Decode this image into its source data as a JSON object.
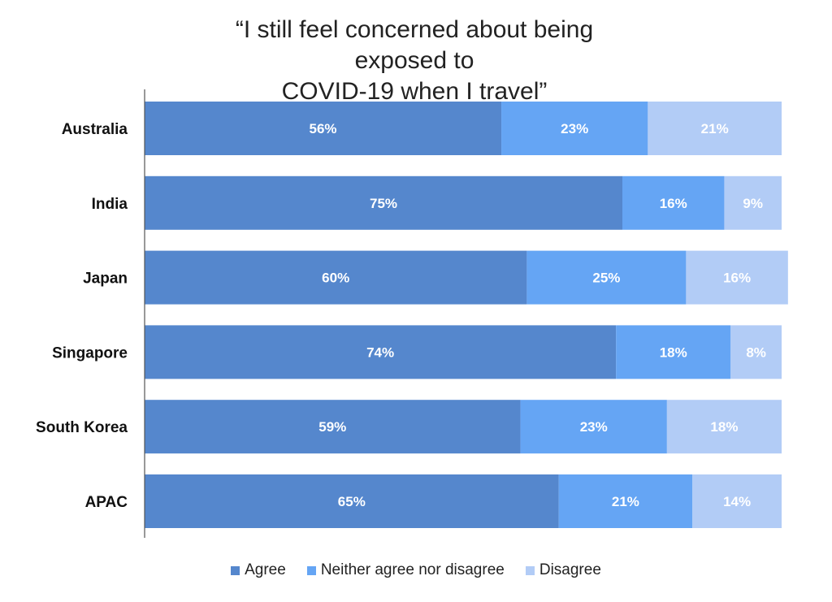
{
  "chart_data": {
    "type": "bar",
    "orientation": "horizontal",
    "stacked": true,
    "title": "“I still feel concerned about being exposed to COVID-19 when I travel”",
    "title_lines": [
      "“I still feel concerned about being exposed to",
      "COVID-19 when I travel”"
    ],
    "categories": [
      "Australia",
      "India",
      "Japan",
      "Singapore",
      "South Korea",
      "APAC"
    ],
    "series": [
      {
        "name": "Agree",
        "color": "#5587cd",
        "values": [
          56,
          75,
          60,
          74,
          59,
          65
        ],
        "labels": [
          "56%",
          "75%",
          "60%",
          "74%",
          "59%",
          "65%"
        ]
      },
      {
        "name": "Neither agree nor disagree",
        "color": "#65a5f4",
        "values": [
          23,
          16,
          25,
          18,
          23,
          21
        ],
        "labels": [
          "23%",
          "16%",
          "25%",
          "18%",
          "23%",
          "21%"
        ]
      },
      {
        "name": "Disagree",
        "color": "#b2ccf6",
        "values": [
          21,
          9,
          16,
          8,
          18,
          14
        ],
        "labels": [
          "21%",
          "9%",
          "16%",
          "8%",
          "18%",
          "14%"
        ]
      }
    ],
    "xlim": [
      0,
      100
    ],
    "grid": false,
    "legend_position": "bottom"
  }
}
